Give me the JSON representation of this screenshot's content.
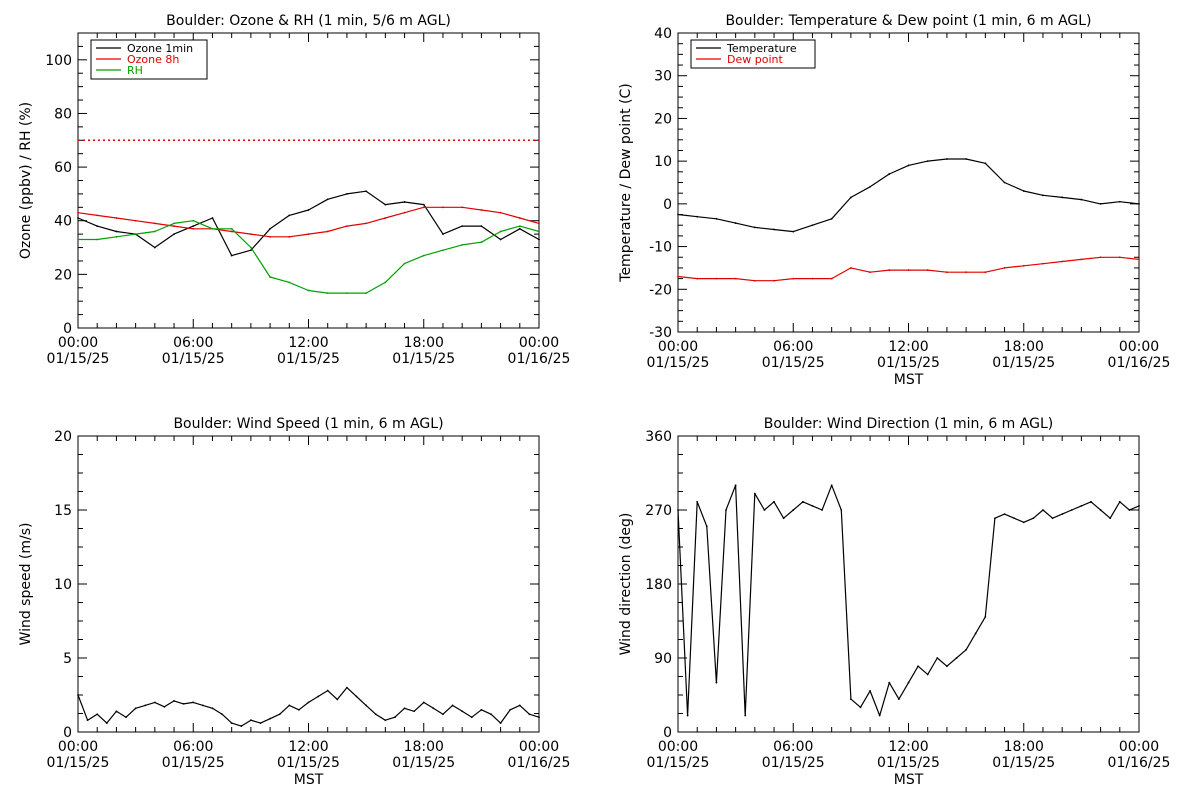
{
  "chart_data": [
    {
      "type": "line",
      "title": "Boulder: Ozone & RH (1 min, 5/6 m AGL)",
      "xlabel": "",
      "ylabel": "Ozone (ppbv) / RH (%)",
      "ylim": [
        0,
        110
      ],
      "yticks": [
        0,
        20,
        40,
        60,
        80,
        100
      ],
      "x_hours": [
        0,
        1,
        2,
        3,
        4,
        5,
        6,
        7,
        8,
        9,
        10,
        11,
        12,
        13,
        14,
        15,
        16,
        17,
        18,
        19,
        20,
        21,
        22,
        23,
        24
      ],
      "reference_line": {
        "y": 70,
        "color": "#e00000",
        "style": "dotted"
      },
      "legend": "top-left",
      "series": [
        {
          "name": "Ozone 1min",
          "color": "#000000",
          "values": [
            41,
            38,
            36,
            35,
            30,
            35,
            38,
            41,
            27,
            29,
            37,
            42,
            44,
            48,
            50,
            51,
            46,
            47,
            46,
            35,
            38,
            38,
            33,
            37,
            33
          ]
        },
        {
          "name": "Ozone 8h",
          "color": "#e00000",
          "values": [
            43,
            42,
            41,
            40,
            39,
            38,
            37,
            37,
            36,
            35,
            34,
            34,
            35,
            36,
            38,
            39,
            41,
            43,
            45,
            45,
            45,
            44,
            43,
            41,
            39
          ]
        },
        {
          "name": "RH",
          "color": "#00a000",
          "values": [
            33,
            33,
            34,
            35,
            36,
            39,
            40,
            37,
            37,
            30,
            19,
            17,
            14,
            13,
            13,
            13,
            17,
            24,
            27,
            29,
            31,
            32,
            36,
            38,
            36
          ]
        }
      ]
    },
    {
      "type": "line",
      "title": "Boulder: Temperature & Dew point (1 min, 6 m AGL)",
      "xlabel": "MST",
      "ylabel": "Temperature / Dew point (C)",
      "ylim": [
        -30,
        40
      ],
      "yticks": [
        -30,
        -20,
        -10,
        0,
        10,
        20,
        30,
        40
      ],
      "x_hours": [
        0,
        1,
        2,
        3,
        4,
        5,
        6,
        7,
        8,
        9,
        10,
        11,
        12,
        13,
        14,
        15,
        16,
        17,
        18,
        19,
        20,
        21,
        22,
        23,
        24
      ],
      "legend": "top-left",
      "series": [
        {
          "name": "Temperature",
          "color": "#000000",
          "values": [
            -2.5,
            -3,
            -3.5,
            -4.5,
            -5.5,
            -6,
            -6.5,
            -5,
            -3.5,
            1.5,
            4,
            7,
            9,
            10,
            10.5,
            10.5,
            9.5,
            5,
            3,
            2,
            1.5,
            1,
            0,
            0.5,
            0
          ]
        },
        {
          "name": "Dew point",
          "color": "#e00000",
          "values": [
            -17,
            -17.5,
            -17.5,
            -17.5,
            -18,
            -18,
            -17.5,
            -17.5,
            -17.5,
            -15,
            -16,
            -15.5,
            -15.5,
            -15.5,
            -16,
            -16,
            -16,
            -15,
            -14.5,
            -14,
            -13.5,
            -13,
            -12.5,
            -12.5,
            -13
          ]
        }
      ]
    },
    {
      "type": "line",
      "title": "Boulder: Wind Speed (1 min, 6 m AGL)",
      "xlabel": "MST",
      "ylabel": "Wind speed (m/s)",
      "ylim": [
        0,
        20
      ],
      "yticks": [
        0,
        5,
        10,
        15,
        20
      ],
      "x_hours": [
        0,
        0.5,
        1,
        1.5,
        2,
        2.5,
        3,
        3.5,
        4,
        4.5,
        5,
        5.5,
        6,
        6.5,
        7,
        7.5,
        8,
        8.5,
        9,
        9.5,
        10,
        10.5,
        11,
        11.5,
        12,
        12.5,
        13,
        13.5,
        14,
        14.5,
        15,
        15.5,
        16,
        16.5,
        17,
        17.5,
        18,
        18.5,
        19,
        19.5,
        20,
        20.5,
        21,
        21.5,
        22,
        22.5,
        23,
        23.5,
        24
      ],
      "series": [
        {
          "name": "",
          "color": "#000000",
          "values": [
            2.5,
            0.8,
            1.2,
            0.6,
            1.4,
            1.0,
            1.6,
            1.8,
            2.0,
            1.7,
            2.1,
            1.9,
            2.0,
            1.8,
            1.6,
            1.2,
            0.6,
            0.4,
            0.8,
            0.6,
            0.9,
            1.2,
            1.8,
            1.5,
            2.0,
            2.4,
            2.8,
            2.2,
            3.0,
            2.4,
            1.8,
            1.2,
            0.8,
            1.0,
            1.6,
            1.4,
            2.0,
            1.6,
            1.2,
            1.8,
            1.4,
            1.0,
            1.5,
            1.2,
            0.6,
            1.5,
            1.8,
            1.2,
            1.0
          ]
        }
      ]
    },
    {
      "type": "line",
      "title": "Boulder: Wind Direction (1 min, 6 m AGL)",
      "xlabel": "MST",
      "ylabel": "Wind direction (deg)",
      "ylim": [
        0,
        360
      ],
      "yticks": [
        0,
        90,
        180,
        270,
        360
      ],
      "x_hours": [
        0,
        0.5,
        1,
        1.5,
        2,
        2.5,
        3,
        3.5,
        4,
        4.5,
        5,
        5.5,
        6,
        6.5,
        7,
        7.5,
        8,
        8.5,
        9,
        9.5,
        10,
        10.5,
        11,
        11.5,
        12,
        12.5,
        13,
        13.5,
        14,
        14.5,
        15,
        15.5,
        16,
        16.5,
        17,
        17.5,
        18,
        18.5,
        19,
        19.5,
        20,
        20.5,
        21,
        21.5,
        22,
        22.5,
        23,
        23.5,
        24
      ],
      "series": [
        {
          "name": "",
          "color": "#000000",
          "values": [
            270,
            20,
            280,
            250,
            60,
            270,
            300,
            20,
            290,
            270,
            280,
            260,
            270,
            280,
            275,
            270,
            300,
            270,
            40,
            30,
            50,
            20,
            60,
            40,
            60,
            80,
            70,
            90,
            80,
            90,
            100,
            120,
            140,
            260,
            265,
            260,
            255,
            260,
            270,
            260,
            265,
            270,
            275,
            280,
            270,
            260,
            280,
            270,
            275
          ]
        }
      ]
    }
  ],
  "x_axis": {
    "tick_times": [
      "00:00",
      "06:00",
      "12:00",
      "18:00",
      "00:00"
    ],
    "tick_dates": [
      "01/15/25",
      "01/15/25",
      "01/15/25",
      "01/15/25",
      "01/16/25"
    ]
  }
}
